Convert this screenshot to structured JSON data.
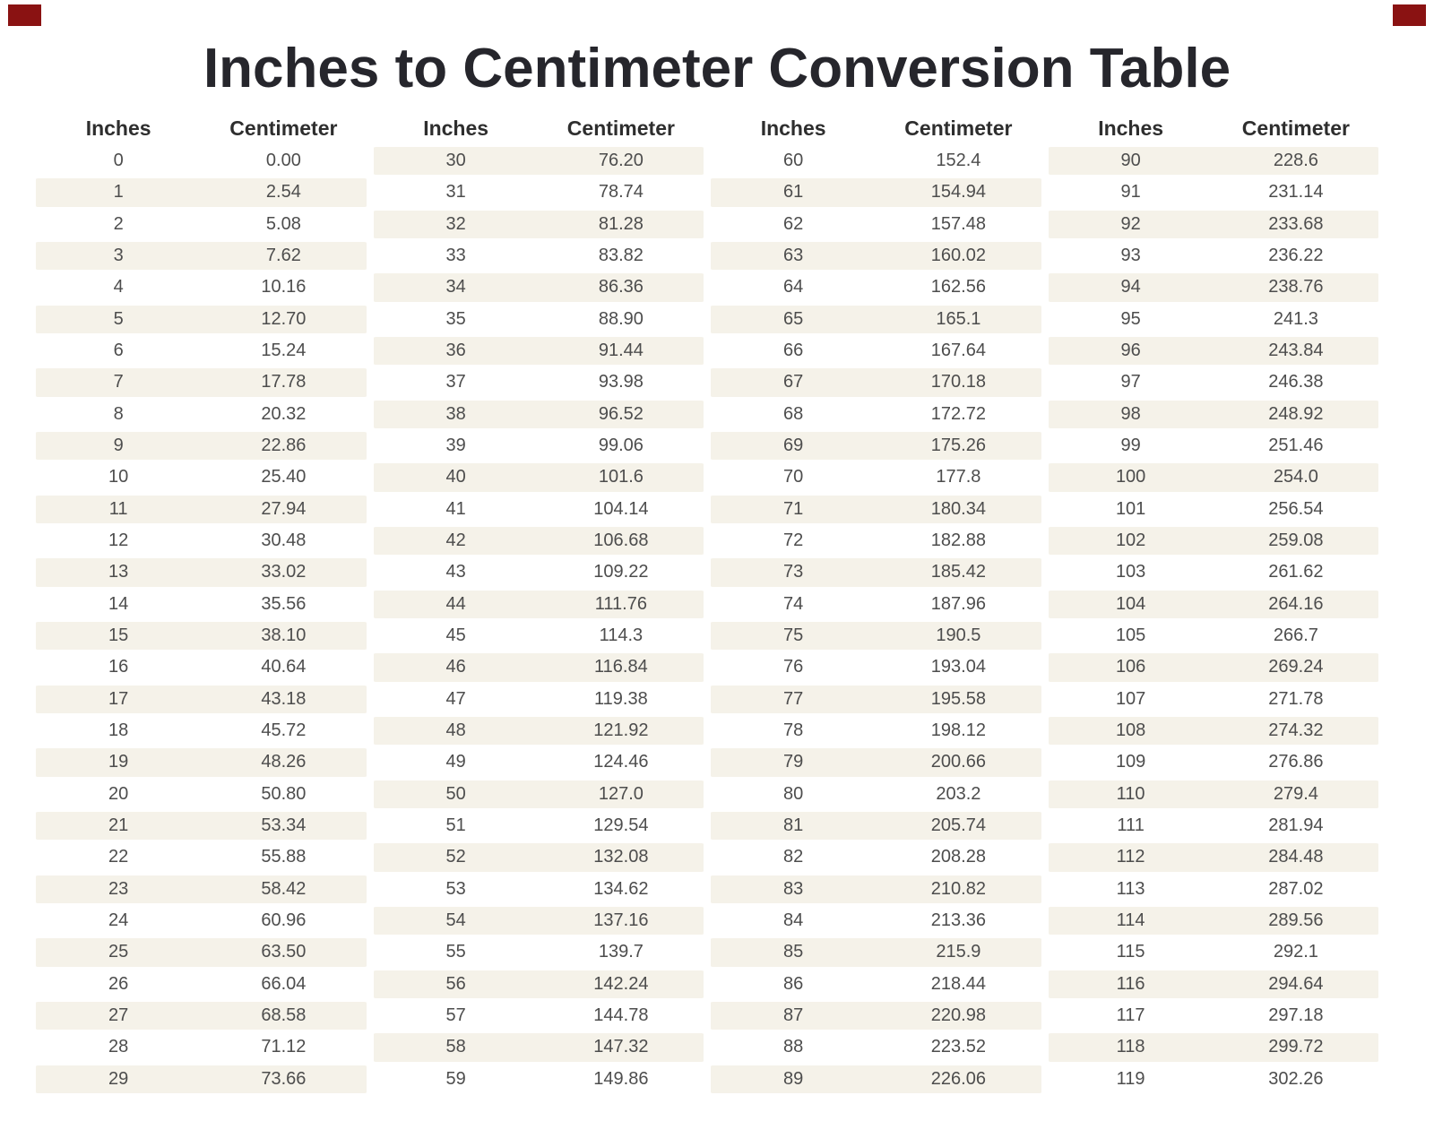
{
  "title": "Inches to Centimeter Conversion Table",
  "colors": {
    "background": "#ffffff",
    "row_stripe": "#f5f2e9",
    "title_text": "#26262c",
    "header_text": "#2e2e2e",
    "cell_text": "#4d4d4d",
    "corner_mark": "#8a1212"
  },
  "corner_marks": {
    "positions": [
      "top-left",
      "top-right"
    ]
  },
  "table": {
    "column_headers": [
      "Inches",
      "Centimeter"
    ],
    "groups": [
      {
        "rows": [
          [
            "0",
            "0.00"
          ],
          [
            "1",
            "2.54"
          ],
          [
            "2",
            "5.08"
          ],
          [
            "3",
            "7.62"
          ],
          [
            "4",
            "10.16"
          ],
          [
            "5",
            "12.70"
          ],
          [
            "6",
            "15.24"
          ],
          [
            "7",
            "17.78"
          ],
          [
            "8",
            "20.32"
          ],
          [
            "9",
            "22.86"
          ],
          [
            "10",
            "25.40"
          ],
          [
            "11",
            "27.94"
          ],
          [
            "12",
            "30.48"
          ],
          [
            "13",
            "33.02"
          ],
          [
            "14",
            "35.56"
          ],
          [
            "15",
            "38.10"
          ],
          [
            "16",
            "40.64"
          ],
          [
            "17",
            "43.18"
          ],
          [
            "18",
            "45.72"
          ],
          [
            "19",
            "48.26"
          ],
          [
            "20",
            "50.80"
          ],
          [
            "21",
            "53.34"
          ],
          [
            "22",
            "55.88"
          ],
          [
            "23",
            "58.42"
          ],
          [
            "24",
            "60.96"
          ],
          [
            "25",
            "63.50"
          ],
          [
            "26",
            "66.04"
          ],
          [
            "27",
            "68.58"
          ],
          [
            "28",
            "71.12"
          ],
          [
            "29",
            "73.66"
          ]
        ]
      },
      {
        "rows": [
          [
            "30",
            "76.20"
          ],
          [
            "31",
            "78.74"
          ],
          [
            "32",
            "81.28"
          ],
          [
            "33",
            "83.82"
          ],
          [
            "34",
            "86.36"
          ],
          [
            "35",
            "88.90"
          ],
          [
            "36",
            "91.44"
          ],
          [
            "37",
            "93.98"
          ],
          [
            "38",
            "96.52"
          ],
          [
            "39",
            "99.06"
          ],
          [
            "40",
            "101.6"
          ],
          [
            "41",
            "104.14"
          ],
          [
            "42",
            "106.68"
          ],
          [
            "43",
            "109.22"
          ],
          [
            "44",
            "111.76"
          ],
          [
            "45",
            "114.3"
          ],
          [
            "46",
            "116.84"
          ],
          [
            "47",
            "119.38"
          ],
          [
            "48",
            "121.92"
          ],
          [
            "49",
            "124.46"
          ],
          [
            "50",
            "127.0"
          ],
          [
            "51",
            "129.54"
          ],
          [
            "52",
            "132.08"
          ],
          [
            "53",
            "134.62"
          ],
          [
            "54",
            "137.16"
          ],
          [
            "55",
            "139.7"
          ],
          [
            "56",
            "142.24"
          ],
          [
            "57",
            "144.78"
          ],
          [
            "58",
            "147.32"
          ],
          [
            "59",
            "149.86"
          ]
        ]
      },
      {
        "rows": [
          [
            "60",
            "152.4"
          ],
          [
            "61",
            "154.94"
          ],
          [
            "62",
            "157.48"
          ],
          [
            "63",
            "160.02"
          ],
          [
            "64",
            "162.56"
          ],
          [
            "65",
            "165.1"
          ],
          [
            "66",
            "167.64"
          ],
          [
            "67",
            "170.18"
          ],
          [
            "68",
            "172.72"
          ],
          [
            "69",
            "175.26"
          ],
          [
            "70",
            "177.8"
          ],
          [
            "71",
            "180.34"
          ],
          [
            "72",
            "182.88"
          ],
          [
            "73",
            "185.42"
          ],
          [
            "74",
            "187.96"
          ],
          [
            "75",
            "190.5"
          ],
          [
            "76",
            "193.04"
          ],
          [
            "77",
            "195.58"
          ],
          [
            "78",
            "198.12"
          ],
          [
            "79",
            "200.66"
          ],
          [
            "80",
            "203.2"
          ],
          [
            "81",
            "205.74"
          ],
          [
            "82",
            "208.28"
          ],
          [
            "83",
            "210.82"
          ],
          [
            "84",
            "213.36"
          ],
          [
            "85",
            "215.9"
          ],
          [
            "86",
            "218.44"
          ],
          [
            "87",
            "220.98"
          ],
          [
            "88",
            "223.52"
          ],
          [
            "89",
            "226.06"
          ]
        ]
      },
      {
        "rows": [
          [
            "90",
            "228.6"
          ],
          [
            "91",
            "231.14"
          ],
          [
            "92",
            "233.68"
          ],
          [
            "93",
            "236.22"
          ],
          [
            "94",
            "238.76"
          ],
          [
            "95",
            "241.3"
          ],
          [
            "96",
            "243.84"
          ],
          [
            "97",
            "246.38"
          ],
          [
            "98",
            "248.92"
          ],
          [
            "99",
            "251.46"
          ],
          [
            "100",
            "254.0"
          ],
          [
            "101",
            "256.54"
          ],
          [
            "102",
            "259.08"
          ],
          [
            "103",
            "261.62"
          ],
          [
            "104",
            "264.16"
          ],
          [
            "105",
            "266.7"
          ],
          [
            "106",
            "269.24"
          ],
          [
            "107",
            "271.78"
          ],
          [
            "108",
            "274.32"
          ],
          [
            "109",
            "276.86"
          ],
          [
            "110",
            "279.4"
          ],
          [
            "111",
            "281.94"
          ],
          [
            "112",
            "284.48"
          ],
          [
            "113",
            "287.02"
          ],
          [
            "114",
            "289.56"
          ],
          [
            "115",
            "292.1"
          ],
          [
            "116",
            "294.64"
          ],
          [
            "117",
            "297.18"
          ],
          [
            "118",
            "299.72"
          ],
          [
            "119",
            "302.26"
          ]
        ]
      }
    ]
  }
}
